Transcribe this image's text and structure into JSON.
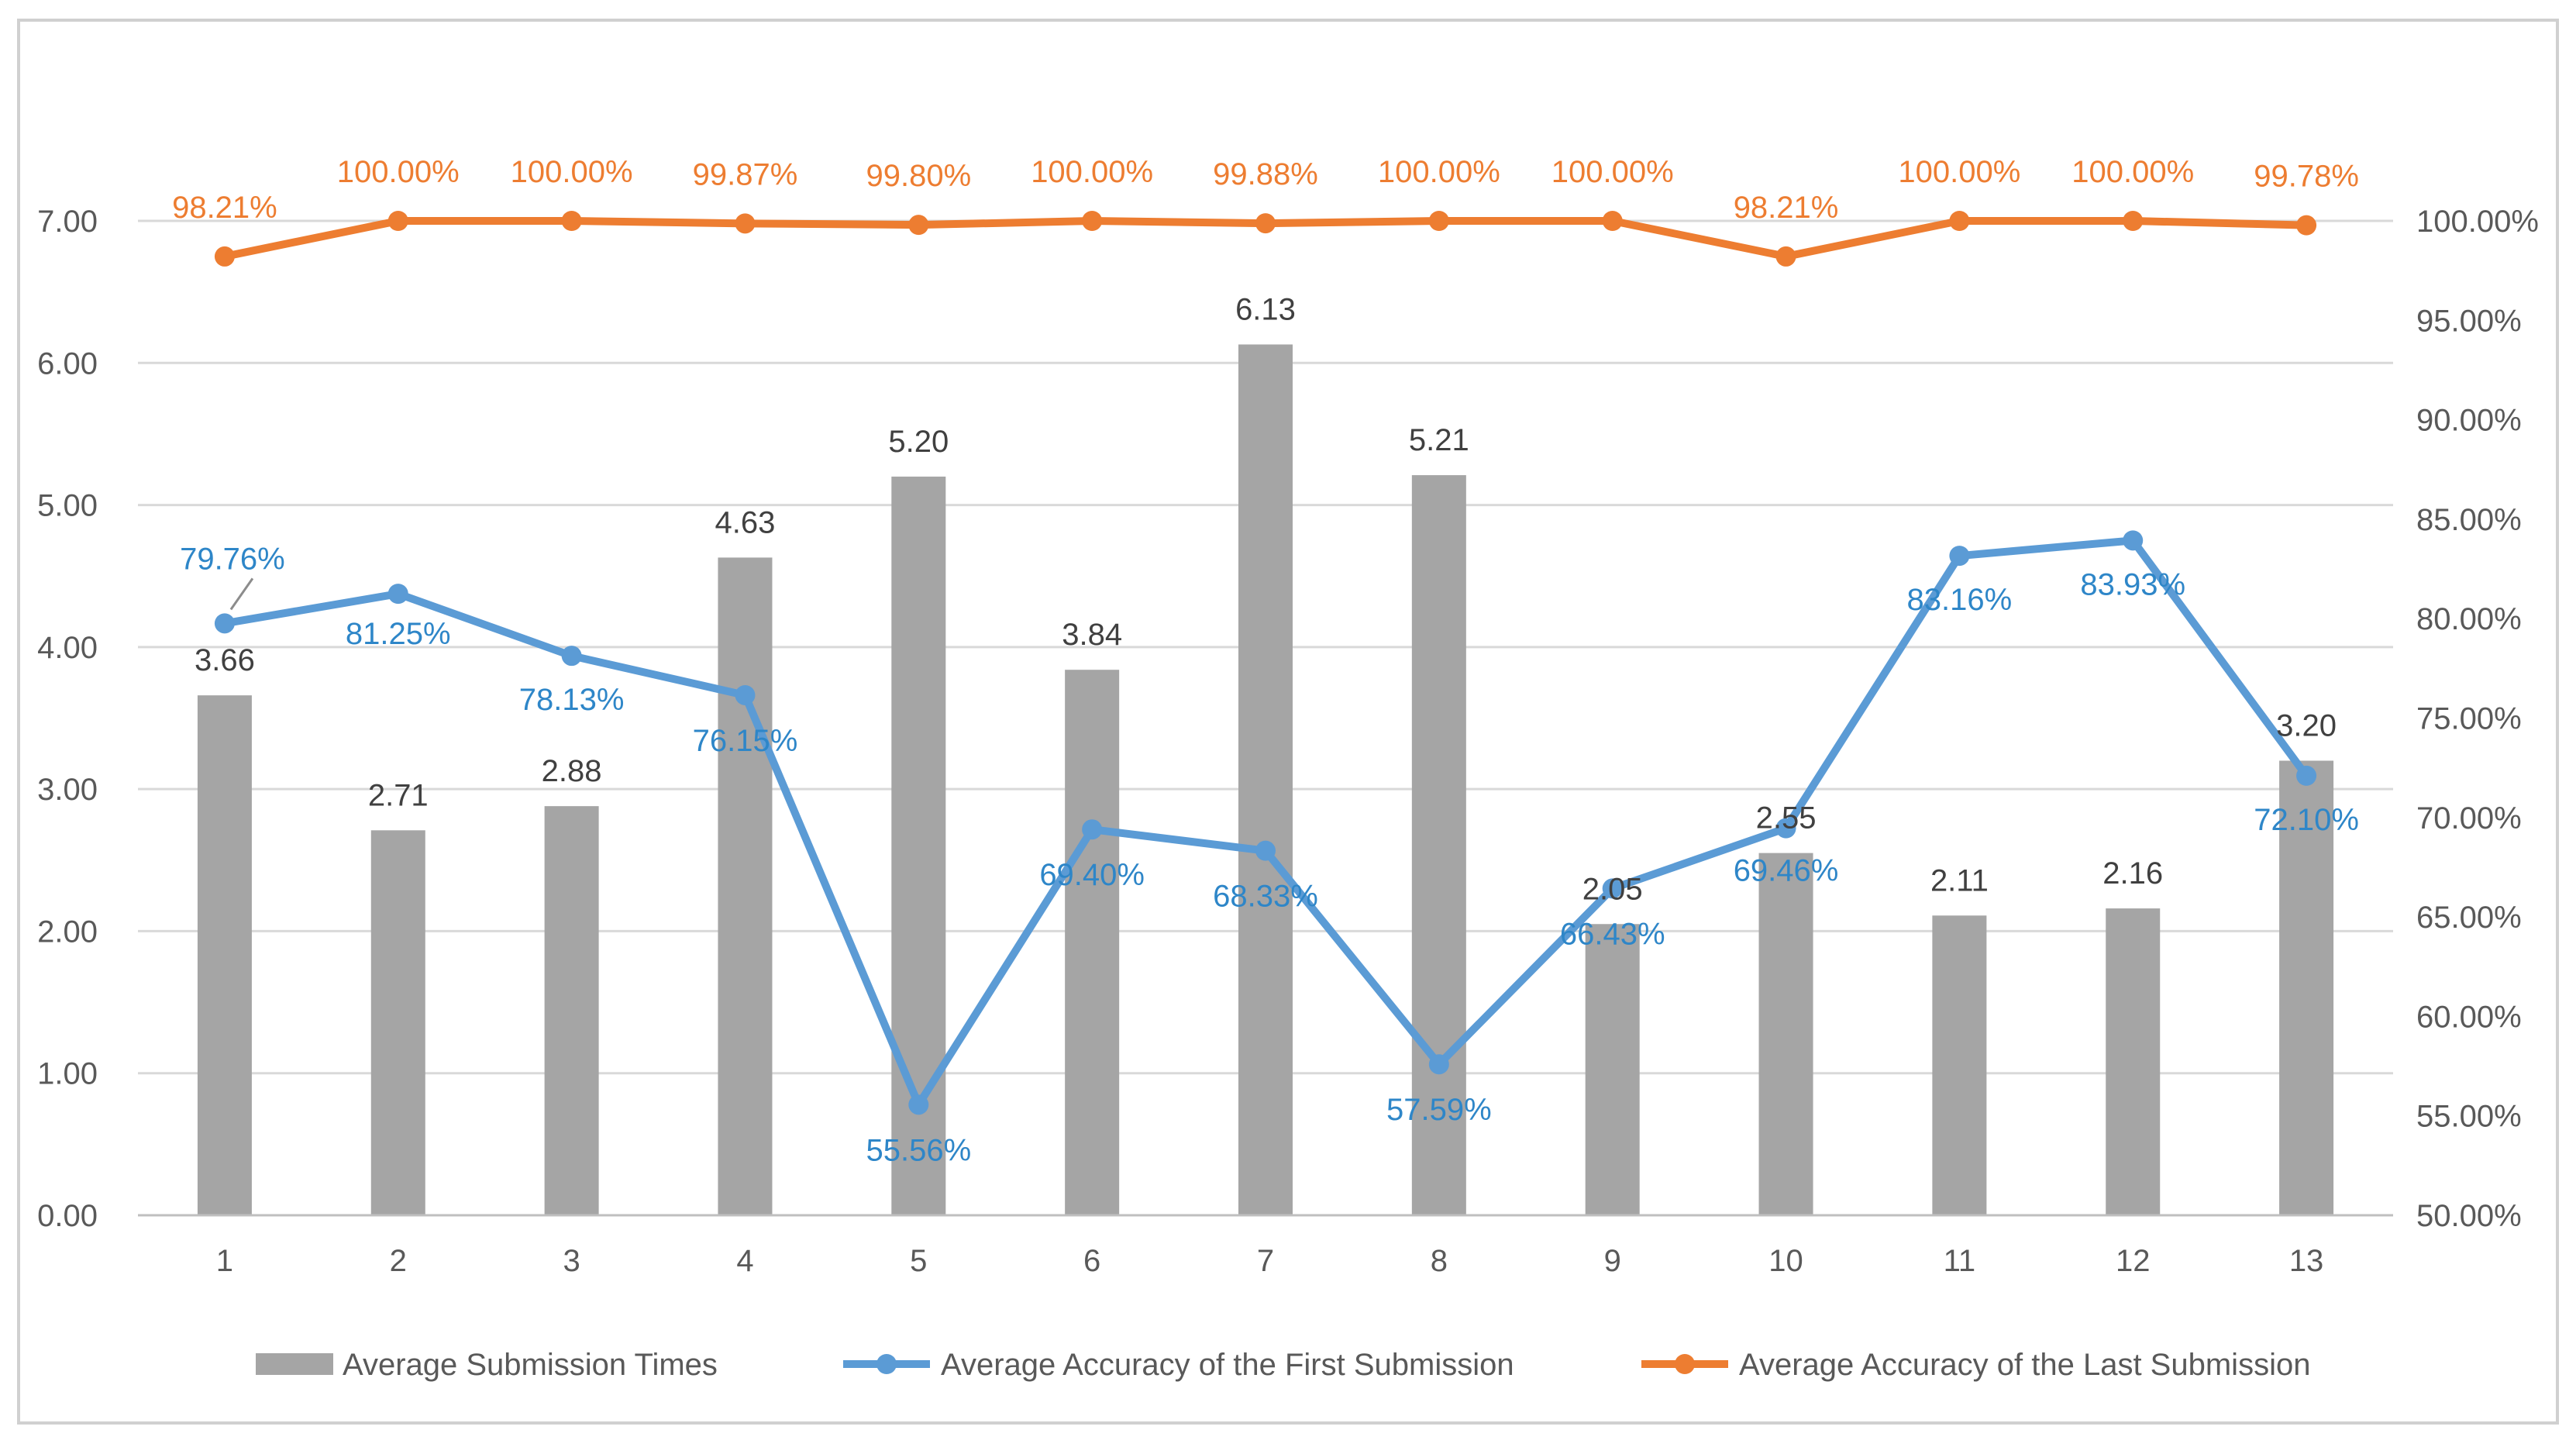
{
  "chart_data": {
    "type": "bar+line",
    "title": "",
    "categories": [
      "1",
      "2",
      "3",
      "4",
      "5",
      "6",
      "7",
      "8",
      "9",
      "10",
      "11",
      "12",
      "13"
    ],
    "left_axis": {
      "ylim": [
        0,
        7
      ],
      "ticks": [
        "0.00",
        "1.00",
        "2.00",
        "3.00",
        "4.00",
        "5.00",
        "6.00",
        "7.00"
      ]
    },
    "right_axis": {
      "ylim": [
        50,
        100
      ],
      "ticks": [
        "50.00%",
        "55.00%",
        "60.00%",
        "65.00%",
        "70.00%",
        "75.00%",
        "80.00%",
        "85.00%",
        "90.00%",
        "95.00%",
        "100.00%"
      ]
    },
    "grid": true,
    "legend_position": "bottom",
    "series": [
      {
        "name": "Average Submission Times",
        "type": "bar",
        "axis": "left",
        "color": "#a5a5a5",
        "label_color": "#404040",
        "values": [
          3.66,
          2.71,
          2.88,
          4.63,
          5.2,
          3.84,
          6.13,
          5.21,
          2.05,
          2.55,
          2.11,
          2.16,
          3.2
        ],
        "labels": [
          "3.66",
          "2.71",
          "2.88",
          "4.63",
          "5.20",
          "3.84",
          "6.13",
          "5.21",
          "2.05",
          "2.55",
          "2.11",
          "2.16",
          "3.20"
        ]
      },
      {
        "name": "Average Accuracy of the First Submission",
        "type": "line",
        "axis": "right",
        "color": "#5b9bd5",
        "label_color": "#2e86c8",
        "values": [
          79.76,
          81.25,
          78.13,
          76.15,
          55.56,
          69.4,
          68.33,
          57.59,
          66.43,
          69.46,
          83.16,
          83.93,
          72.1
        ],
        "labels": [
          "79.76%",
          "81.25%",
          "78.13%",
          "76.15%",
          "55.56%",
          "69.40%",
          "68.33%",
          "57.59%",
          "66.43%",
          "69.46%",
          "83.16%",
          "83.93%",
          "72.10%"
        ]
      },
      {
        "name": "Average Accuracy of the Last Submission",
        "type": "line",
        "axis": "right",
        "color": "#ed7d31",
        "label_color": "#ed7d31",
        "values": [
          98.21,
          100.0,
          100.0,
          99.87,
          99.8,
          100.0,
          99.88,
          100.0,
          100.0,
          98.21,
          100.0,
          100.0,
          99.78
        ],
        "labels": [
          "98.21%",
          "100.00%",
          "100.00%",
          "99.87%",
          "99.80%",
          "100.00%",
          "99.88%",
          "100.00%",
          "100.00%",
          "98.21%",
          "100.00%",
          "100.00%",
          "99.78%"
        ]
      }
    ]
  }
}
